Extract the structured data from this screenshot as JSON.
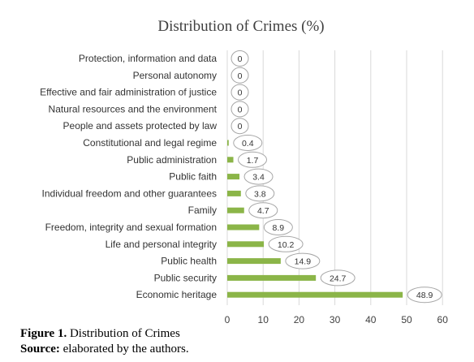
{
  "chart_data": {
    "type": "bar",
    "orientation": "horizontal",
    "title": "Distribution of Crimes (%)",
    "categories": [
      "Protection, information and data",
      "Personal autonomy",
      "Effective and fair administration of justice",
      "Natural resources and the environment",
      "People and assets protected by law",
      "Constitutional and legal regime",
      "Public administration",
      "Public faith",
      "Individual freedom and other guarantees",
      "Family",
      "Freedom, integrity and sexual formation",
      "Life and personal integrity",
      "Public health",
      "Public security",
      "Economic heritage"
    ],
    "values": [
      0,
      0,
      0,
      0,
      0,
      0.4,
      1.7,
      3.4,
      3.8,
      4.7,
      8.9,
      10.2,
      14.9,
      24.7,
      48.9
    ],
    "data_labels": [
      "0",
      "0",
      "0",
      "0",
      "0",
      "0.4",
      "1.7",
      "3.4",
      "3.8",
      "4.7",
      "8.9",
      "10.2",
      "14.9",
      "24.7",
      "48.9"
    ],
    "xlim": [
      0,
      60
    ],
    "xticks": [
      0,
      10,
      20,
      30,
      40,
      50,
      60
    ],
    "grid": true,
    "bar_color": "#8bb548"
  },
  "caption": {
    "figure_label": "Figure 1.",
    "figure_text": " Distribution of Crimes",
    "source_label": "Source:",
    "source_text": " elaborated by the authors."
  }
}
